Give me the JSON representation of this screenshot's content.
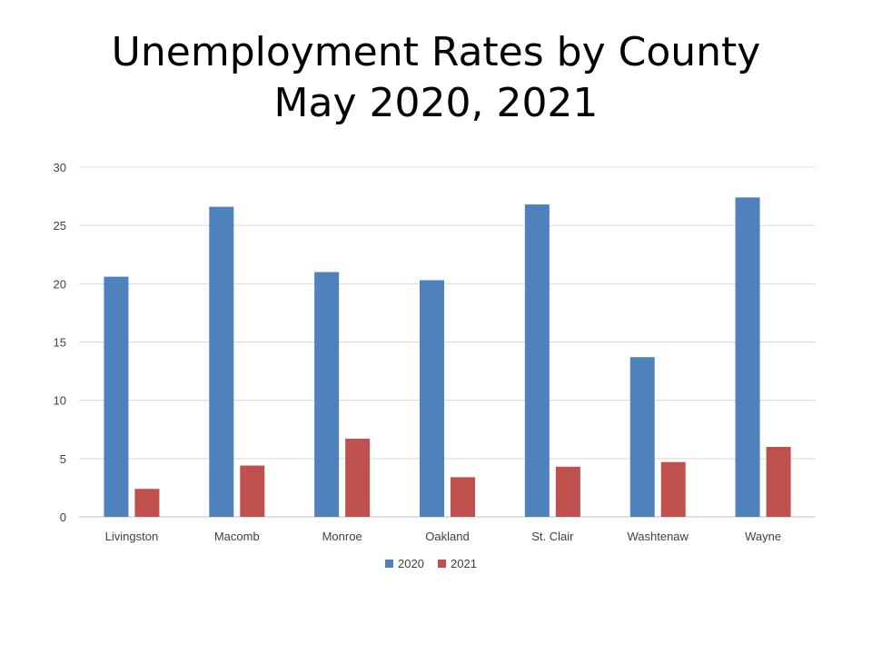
{
  "title_line1": "Unemployment Rates by County",
  "title_line2": "May 2020, 2021",
  "chart_data": {
    "type": "bar",
    "title": "Unemployment Rates by County May 2020, 2021",
    "categories": [
      "Livingston",
      "Macomb",
      "Monroe",
      "Oakland",
      "St. Clair",
      "Washtenaw",
      "Wayne"
    ],
    "series": [
      {
        "name": "2020",
        "color": "#4F81BD",
        "values": [
          20.6,
          26.6,
          21.0,
          20.3,
          26.8,
          13.7,
          27.4
        ]
      },
      {
        "name": "2021",
        "color": "#C0504D",
        "values": [
          2.4,
          4.4,
          6.7,
          3.4,
          4.3,
          4.7,
          6.0
        ]
      }
    ],
    "ylim": [
      0,
      30
    ],
    "yticks": [
      0,
      5,
      10,
      15,
      20,
      25,
      30
    ],
    "grid": true,
    "legend": "bottom"
  }
}
